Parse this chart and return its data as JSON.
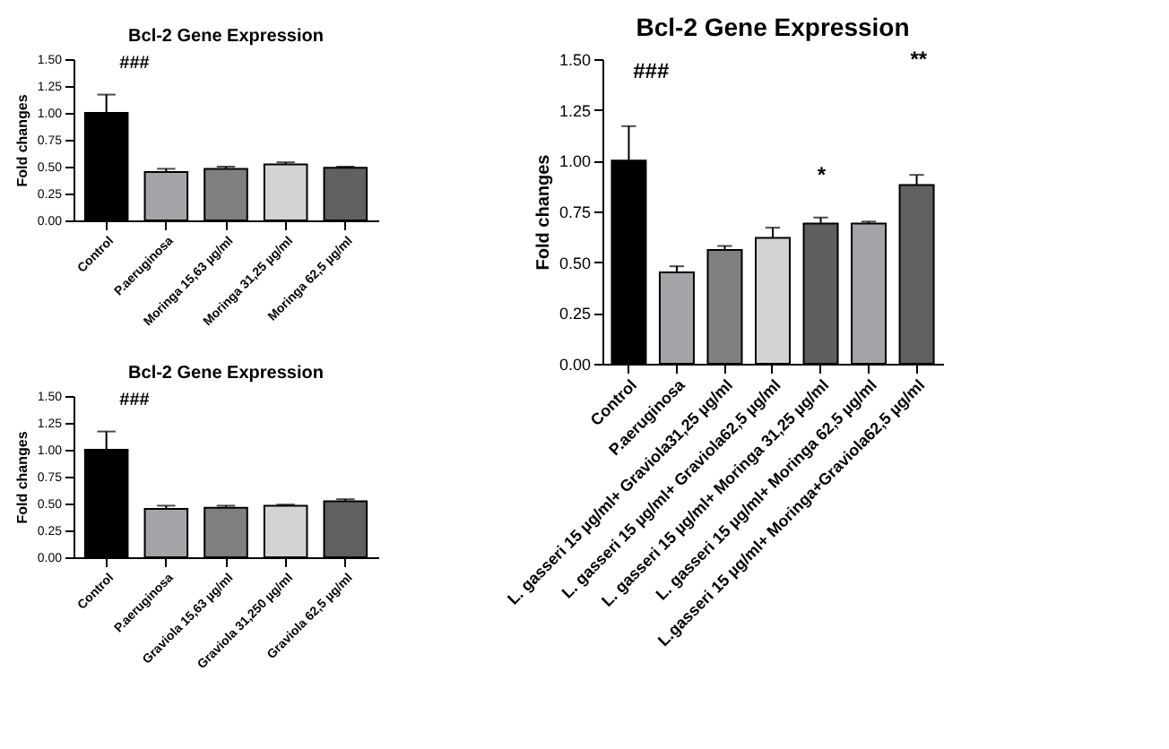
{
  "chart_data": [
    {
      "type": "bar",
      "title": "Bcl-2 Gene Expression",
      "ylabel": "Fold changes",
      "categories": [
        "Control",
        "P.aeruginosa",
        "Moringa 15,63 µg/ml",
        "Moringa 31,25 µg/ml",
        "Moringa 62,5 µg/ml"
      ],
      "values": [
        1.0,
        0.45,
        0.48,
        0.52,
        0.49
      ],
      "errors": [
        [
          1.0,
          1.17
        ],
        [
          0.45,
          0.48
        ],
        [
          0.48,
          0.5
        ],
        [
          0.52,
          0.54
        ],
        [
          0.49,
          0.5
        ]
      ],
      "colors": [
        "#000000",
        "#a3a3a8",
        "#7f7f7f",
        "#d3d3d3",
        "#606060"
      ],
      "ylim": [
        0,
        1.5
      ],
      "yticks": [
        {
          "value": 0,
          "label": "0.00"
        },
        {
          "value": 0.25,
          "label": "0.25"
        },
        {
          "value": 0.5,
          "label": "0.50"
        },
        {
          "value": 0.75,
          "label": "0.75"
        },
        {
          "value": 1.0,
          "label": "1.00"
        },
        {
          "value": 1.25,
          "label": "1.25"
        },
        {
          "value": 1.5,
          "label": "1.50"
        }
      ],
      "annotations": [
        "###"
      ],
      "grid": false
    },
    {
      "type": "bar",
      "title": "Bcl-2 Gene Expression",
      "ylabel": "Fold changes",
      "categories": [
        "Control",
        "P.aeruginosa",
        "Graviola 15,63 µg/ml",
        "Graviola 31,250 µg/ml",
        "Graviola 62,5 µg/ml"
      ],
      "values": [
        1.0,
        0.45,
        0.46,
        0.48,
        0.52
      ],
      "errors": [
        [
          1.0,
          1.17
        ],
        [
          0.45,
          0.48
        ],
        [
          0.46,
          0.48
        ],
        [
          0.48,
          0.49
        ],
        [
          0.52,
          0.54
        ]
      ],
      "colors": [
        "#000000",
        "#a3a3a8",
        "#7f7f7f",
        "#d3d3d3",
        "#606060"
      ],
      "ylim": [
        0,
        1.5
      ],
      "yticks": [
        {
          "value": 0,
          "label": "0.00"
        },
        {
          "value": 0.25,
          "label": "0.25"
        },
        {
          "value": 0.5,
          "label": "0.50"
        },
        {
          "value": 0.75,
          "label": "0.75"
        },
        {
          "value": 1.0,
          "label": "1.00"
        },
        {
          "value": 1.25,
          "label": "1.25"
        },
        {
          "value": 1.5,
          "label": "1.50"
        }
      ],
      "annotations": [
        "###"
      ],
      "grid": false
    },
    {
      "type": "bar",
      "title": "Bcl-2 Gene Expression",
      "ylabel": "Fold changes",
      "categories": [
        "Control",
        "P.aeruginosa",
        "L. gasseri 15 µg/ml+ Graviola31,25 µg/ml",
        "L. gasseri 15 µg/ml+ Graviola62,5 µg/ml",
        "L. gasseri 15 µg/ml+ Moringa 31,25 µg/ml",
        "L. gasseri 15 µg/ml+ Moringa 62,5 µg/ml",
        "L.gasseri 15 µg/ml+ Moringa+Graviola62,5 µg/ml"
      ],
      "values": [
        1.0,
        0.45,
        0.56,
        0.62,
        0.69,
        0.69,
        0.88
      ],
      "errors": [
        [
          1.0,
          1.17
        ],
        [
          0.45,
          0.48
        ],
        [
          0.56,
          0.58
        ],
        [
          0.62,
          0.67
        ],
        [
          0.69,
          0.72
        ],
        [
          0.69,
          0.7
        ],
        [
          0.88,
          0.93
        ]
      ],
      "colors": [
        "#000000",
        "#a3a3a8",
        "#7f7f7f",
        "#d3d3d3",
        "#5f5f5f",
        "#a3a3a8",
        "#606060"
      ],
      "ylim": [
        0,
        1.5
      ],
      "yticks": [
        {
          "value": 0,
          "label": "0.00"
        },
        {
          "value": 0.25,
          "label": "0.25"
        },
        {
          "value": 0.5,
          "label": "0.50"
        },
        {
          "value": 0.75,
          "label": "0.75"
        },
        {
          "value": 1.0,
          "label": "1.00"
        },
        {
          "value": 1.25,
          "label": "1.25"
        },
        {
          "value": 1.5,
          "label": "1.50"
        }
      ],
      "annotations": [
        "###",
        "*",
        "**"
      ],
      "grid": false
    }
  ]
}
